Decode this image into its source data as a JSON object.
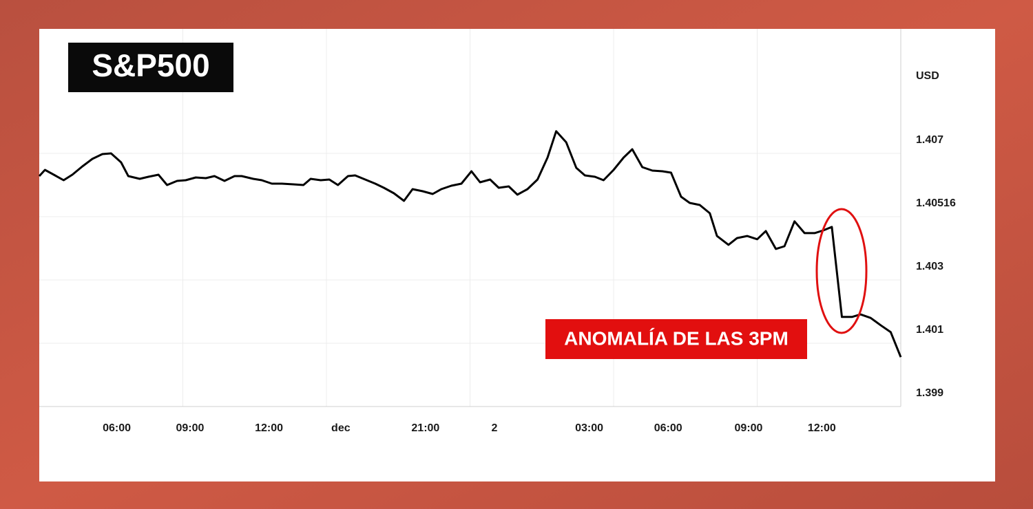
{
  "chart_data": {
    "type": "line",
    "title": "S&P500",
    "y_unit": "USD",
    "annotation": "ANOMALÍA DE LAS 3PM",
    "x": [
      0,
      0.04,
      0.11,
      0.17,
      0.23,
      0.3,
      0.37,
      0.44,
      0.5,
      0.57,
      0.62,
      0.7,
      0.76,
      0.83,
      0.89,
      0.96,
      1.02,
      1.09,
      1.16,
      1.22,
      1.29,
      1.36,
      1.41,
      1.49,
      1.55,
      1.62,
      1.69,
      1.77,
      1.84,
      1.89,
      1.96,
      2.02,
      2.08,
      2.15,
      2.2,
      2.27,
      2.34,
      2.4,
      2.47,
      2.54,
      2.6,
      2.67,
      2.74,
      2.8,
      2.87,
      2.94,
      3.01,
      3.07,
      3.14,
      3.2,
      3.27,
      3.33,
      3.4,
      3.47,
      3.54,
      3.6,
      3.67,
      3.74,
      3.8,
      3.87,
      3.93,
      4.0,
      4.07,
      4.13,
      4.2,
      4.27,
      4.34,
      4.4,
      4.47,
      4.53,
      4.6,
      4.67,
      4.72,
      4.8,
      4.86,
      4.93,
      5.0,
      5.06,
      5.13,
      5.19,
      5.26,
      5.33,
      5.4,
      5.46,
      5.52,
      5.59,
      5.66,
      5.72,
      5.79,
      5.86,
      5.93,
      6.0
    ],
    "series": [
      {
        "name": "S&P500",
        "color": "#000000",
        "values": [
          1.40634,
          1.40652,
          1.40636,
          1.40622,
          1.40638,
          1.40662,
          1.40684,
          1.40698,
          1.407,
          1.40674,
          1.40634,
          1.40626,
          1.40632,
          1.40638,
          1.40608,
          1.4062,
          1.40622,
          1.4063,
          1.40628,
          1.40634,
          1.4062,
          1.40634,
          1.40634,
          1.40626,
          1.40622,
          1.40612,
          1.40612,
          1.4061,
          1.40608,
          1.40626,
          1.40622,
          1.40624,
          1.40608,
          1.40634,
          1.40636,
          1.40624,
          1.40612,
          1.406,
          1.40584,
          1.40562,
          1.40596,
          1.4059,
          1.40582,
          1.40596,
          1.40606,
          1.40612,
          1.40648,
          1.40616,
          1.40624,
          1.406,
          1.40604,
          1.4058,
          1.40596,
          1.40624,
          1.40688,
          1.40764,
          1.40732,
          1.40658,
          1.40636,
          1.40632,
          1.40622,
          1.40652,
          1.40688,
          1.40712,
          1.4066,
          1.4065,
          1.40648,
          1.40644,
          1.40574,
          1.40556,
          1.4055,
          1.40526,
          1.4045,
          1.4042,
          1.40443,
          1.4045,
          1.40439,
          1.40467,
          1.40406,
          1.40415,
          1.405,
          1.4046,
          1.4046,
          1.40469,
          1.40481,
          1.40183,
          1.40183,
          1.40191,
          1.4018,
          1.40157,
          1.40135,
          1.40056
        ]
      }
    ],
    "xlim": [
      0,
      6
    ],
    "xticks": [
      {
        "value": 0.54,
        "label": "06:00"
      },
      {
        "value": 1.05,
        "label": "09:00"
      },
      {
        "value": 1.6,
        "label": "12:00"
      },
      {
        "value": 2.1,
        "label": "dec"
      },
      {
        "value": 2.69,
        "label": "21:00"
      },
      {
        "value": 3.17,
        "label": "2"
      },
      {
        "value": 3.83,
        "label": "03:00"
      },
      {
        "value": 4.38,
        "label": "06:00"
      },
      {
        "value": 4.94,
        "label": "09:00"
      },
      {
        "value": 5.45,
        "label": "12:00"
      }
    ],
    "x_grid": [
      1,
      2,
      3,
      4,
      5
    ],
    "ylim": [
      1.399,
      1.4106
    ],
    "yticks": [
      1.399,
      1.401,
      1.403,
      1.40516,
      1.407
    ],
    "grid": true
  }
}
